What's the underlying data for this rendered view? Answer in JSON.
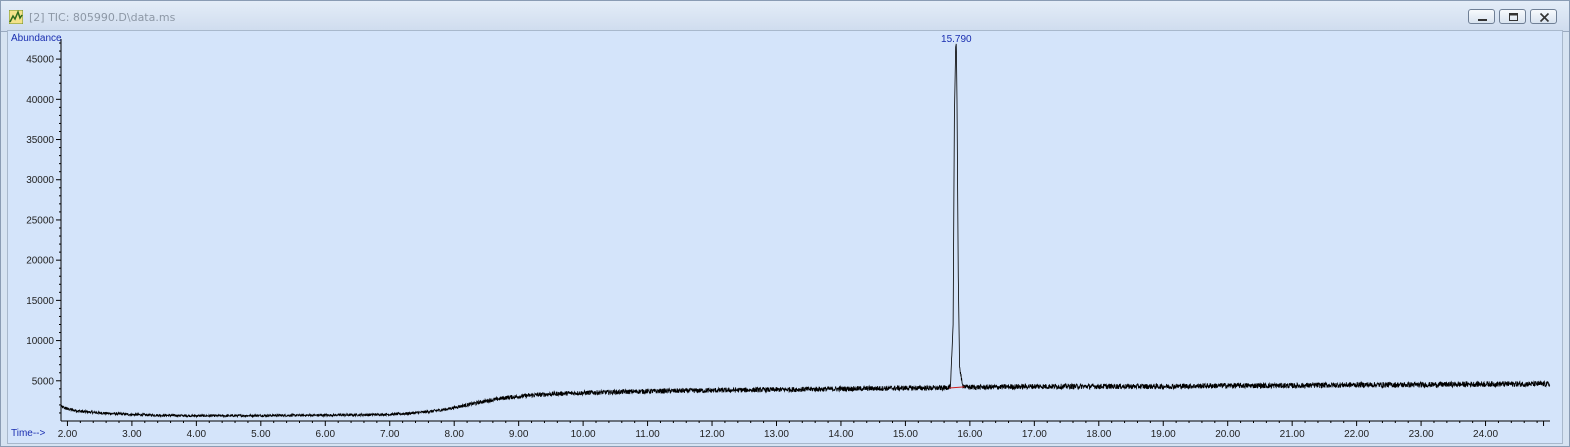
{
  "window": {
    "title": "[2] TIC: 805990.D\\data.ms",
    "icon": "chromatogram-app-icon",
    "controls": [
      "minimize",
      "restore",
      "close"
    ]
  },
  "chart_data": {
    "type": "line",
    "title": "",
    "xlabel": "Time-->",
    "ylabel": "Abundance",
    "xlim": [
      1.9,
      25.0
    ],
    "ylim": [
      0,
      47500
    ],
    "x_ticks": [
      2.0,
      3.0,
      4.0,
      5.0,
      6.0,
      7.0,
      8.0,
      9.0,
      10.0,
      11.0,
      12.0,
      13.0,
      14.0,
      15.0,
      16.0,
      17.0,
      18.0,
      19.0,
      20.0,
      21.0,
      22.0,
      23.0,
      24.0
    ],
    "x_tick_labels": [
      "2.00",
      "3.00",
      "4.00",
      "5.00",
      "6.00",
      "7.00",
      "8.00",
      "9.00",
      "10.00",
      "11.00",
      "12.00",
      "13.00",
      "14.00",
      "15.00",
      "16.00",
      "17.00",
      "18.00",
      "19.00",
      "20.00",
      "21.00",
      "22.00",
      "23.00",
      "24.00"
    ],
    "y_ticks": [
      5000,
      10000,
      15000,
      20000,
      25000,
      30000,
      35000,
      40000,
      45000
    ],
    "y_tick_labels": [
      "5000",
      "10000",
      "15000",
      "20000",
      "25000",
      "30000",
      "35000",
      "40000",
      "45000"
    ],
    "grid": false,
    "series": [
      {
        "color": "#000000",
        "x": [
          1.9,
          2.0,
          2.2,
          2.5,
          3.0,
          3.5,
          4.0,
          4.5,
          5.0,
          5.5,
          6.0,
          6.5,
          7.0,
          7.3,
          7.6,
          7.9,
          8.2,
          8.5,
          8.8,
          9.2,
          9.6,
          10.0,
          10.5,
          11.0,
          12.0,
          13.0,
          14.0,
          15.0,
          15.6,
          15.7,
          15.74,
          15.76,
          15.78,
          15.79,
          15.8,
          15.82,
          15.84,
          15.88,
          15.95,
          16.2,
          17.0,
          18.0,
          19.0,
          20.0,
          21.0,
          22.0,
          23.0,
          24.0,
          25.0
        ],
        "y": [
          1800,
          1500,
          1200,
          1000,
          800,
          700,
          650,
          650,
          680,
          700,
          720,
          760,
          820,
          950,
          1150,
          1500,
          2000,
          2500,
          2900,
          3200,
          3400,
          3500,
          3600,
          3700,
          3800,
          3900,
          4000,
          4100,
          4100,
          4300,
          12000,
          38000,
          46500,
          47000,
          40000,
          18000,
          7000,
          4500,
          4200,
          4200,
          4300,
          4300,
          4300,
          4400,
          4400,
          4500,
          4500,
          4600,
          4600
        ]
      }
    ],
    "peaks": [
      {
        "x": 15.79,
        "label": "15.790"
      }
    ]
  }
}
